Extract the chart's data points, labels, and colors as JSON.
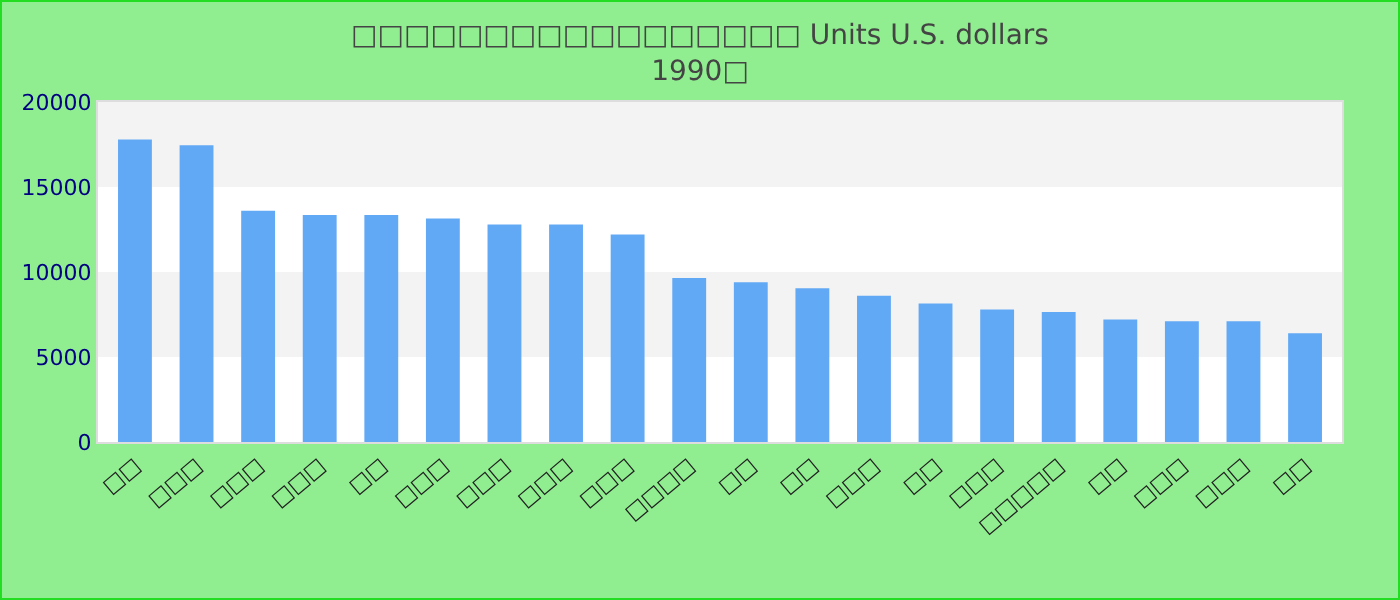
{
  "chart_data": {
    "type": "bar",
    "title": "□□□□□□□□□□□□□□□□□ Units U.S. dollars",
    "subtitle": "1990□",
    "categories": [
      "□□",
      "□□□",
      "□□□",
      "□□□",
      "□□",
      "□□□",
      "□□□",
      "□□□",
      "□□□",
      "□□□□",
      "□□",
      "□□",
      "□□□",
      "□□",
      "□□□",
      "□□□□□",
      "□□",
      "□□□",
      "□□□",
      "□□"
    ],
    "values": [
      17800,
      17450,
      13600,
      13350,
      13350,
      13150,
      12800,
      12800,
      12200,
      9650,
      9400,
      9050,
      8600,
      8150,
      7800,
      7650,
      7200,
      7100,
      7100,
      6400
    ],
    "color": "#62a9f5",
    "ylim": [
      0,
      20000
    ],
    "yticks": [
      0,
      5000,
      10000,
      15000,
      20000
    ],
    "bands": [
      {
        "axis": "y",
        "from": 5000,
        "to": 10000,
        "color": "#f3f3f3"
      },
      {
        "axis": "y",
        "from": 15000,
        "to": 20000,
        "color": "#f3f3f3"
      }
    ]
  }
}
